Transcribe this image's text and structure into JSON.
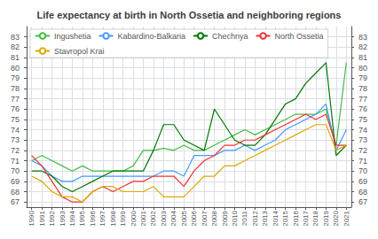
{
  "chart_data": {
    "type": "line",
    "title": "Life expectancy at birth in North Ossetia and neighboring regions",
    "x": [
      1990,
      1991,
      1992,
      1993,
      1994,
      1995,
      1996,
      1997,
      1998,
      1999,
      2000,
      2001,
      2002,
      2003,
      2004,
      2005,
      2006,
      2007,
      2008,
      2009,
      2010,
      2011,
      2012,
      2013,
      2014,
      2015,
      2016,
      2017,
      2018,
      2019,
      2020,
      2021
    ],
    "series": [
      {
        "name": "Ingushetia",
        "color": "#44bb44",
        "values": [
          71.0,
          71.5,
          71.0,
          70.5,
          70.0,
          70.5,
          70.0,
          70.0,
          70.0,
          70.0,
          70.5,
          72.0,
          72.0,
          72.2,
          72.0,
          72.5,
          72.0,
          72.0,
          72.5,
          73.0,
          73.5,
          74.0,
          73.5,
          74.0,
          74.5,
          75.0,
          75.5,
          75.5,
          75.5,
          76.0,
          72.5,
          80.5
        ]
      },
      {
        "name": "Kabardino-Balkaria",
        "color": "#4499ff",
        "values": [
          71.0,
          70.5,
          69.5,
          69.0,
          69.0,
          69.5,
          69.5,
          69.5,
          69.5,
          69.5,
          69.5,
          69.5,
          69.5,
          70.0,
          70.0,
          69.5,
          71.5,
          71.5,
          71.5,
          72.0,
          72.0,
          72.5,
          72.0,
          72.5,
          73.0,
          74.0,
          74.5,
          75.0,
          75.5,
          76.5,
          72.0,
          74.0
        ]
      },
      {
        "name": "Chechnya",
        "color": "#007700",
        "values": [
          70.0,
          70.0,
          69.5,
          68.5,
          68.0,
          68.5,
          69.0,
          69.5,
          70.0,
          70.0,
          70.0,
          70.0,
          72.0,
          74.5,
          74.5,
          73.0,
          72.5,
          72.0,
          76.0,
          74.5,
          73.0,
          72.5,
          72.5,
          73.5,
          75.0,
          76.5,
          77.0,
          78.5,
          79.5,
          80.5,
          71.5,
          72.5
        ]
      },
      {
        "name": "North Ossetia",
        "color": "#ee3333",
        "values": [
          71.5,
          70.5,
          69.0,
          67.5,
          67.0,
          67.0,
          68.0,
          68.5,
          68.0,
          68.5,
          69.0,
          69.0,
          69.5,
          69.5,
          69.5,
          68.5,
          70.0,
          71.0,
          71.5,
          72.5,
          72.5,
          73.0,
          73.0,
          73.5,
          74.0,
          74.5,
          75.0,
          75.5,
          75.0,
          75.5,
          72.5,
          72.5
        ]
      },
      {
        "name": "Stavropol Krai",
        "color": "#ddaa00",
        "values": [
          69.5,
          69.0,
          68.0,
          67.5,
          67.5,
          67.0,
          68.0,
          68.5,
          68.5,
          68.0,
          68.0,
          68.0,
          68.5,
          67.5,
          67.5,
          67.5,
          68.5,
          69.5,
          69.5,
          70.5,
          70.5,
          71.0,
          71.5,
          72.0,
          72.5,
          73.0,
          73.5,
          74.0,
          74.5,
          74.5,
          72.0,
          72.5
        ]
      }
    ],
    "xlim": [
      1989.5,
      2021.5
    ],
    "xticks": [
      1990,
      1991,
      1992,
      1993,
      1994,
      1995,
      1996,
      1997,
      1998,
      1999,
      2000,
      2001,
      2002,
      2003,
      2004,
      2005,
      2006,
      2007,
      2008,
      2009,
      2010,
      2011,
      2012,
      2013,
      2014,
      2015,
      2016,
      2017,
      2018,
      2019,
      2020,
      2021
    ],
    "ylim": [
      66.5,
      84
    ],
    "yticks": [
      67,
      68,
      69,
      70,
      71,
      72,
      73,
      74,
      75,
      76,
      77,
      78,
      79,
      80,
      81,
      82,
      83
    ],
    "y2lim": [
      66.5,
      84
    ],
    "y2ticks": [
      67,
      68,
      69,
      70,
      71,
      72,
      73,
      74,
      75,
      76,
      77,
      78,
      79,
      80,
      81,
      82,
      83
    ],
    "grid": true,
    "legend": "upper left"
  }
}
